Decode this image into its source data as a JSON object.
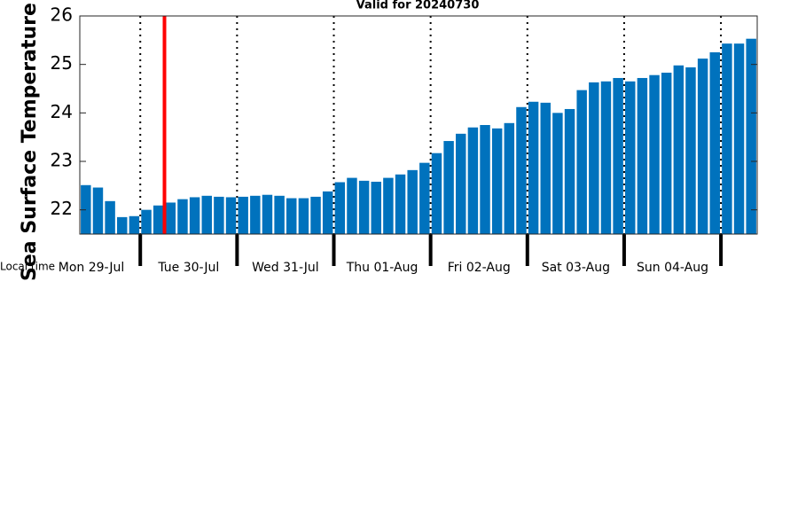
{
  "chart_data": {
    "type": "bar",
    "title": "Valid for 20240730",
    "y_label": "Sea Surface Temperature",
    "x_label": "Local time",
    "day_labels": [
      "Mon 29-Jul",
      "Tue 30-Jul",
      "Wed 31-Jul",
      "Thu 01-Aug",
      "Fri 02-Aug",
      "Sat 03-Aug",
      "Sun 04-Aug"
    ],
    "values": [
      22.51,
      22.46,
      22.18,
      21.85,
      21.87,
      22.0,
      22.09,
      22.15,
      22.22,
      22.26,
      22.29,
      22.27,
      22.26,
      22.27,
      22.29,
      22.31,
      22.29,
      22.24,
      22.24,
      22.27,
      22.38,
      22.57,
      22.66,
      22.6,
      22.58,
      22.66,
      22.73,
      22.82,
      22.97,
      23.17,
      23.42,
      23.57,
      23.7,
      23.75,
      23.68,
      23.79,
      24.12,
      24.23,
      24.21,
      24.0,
      24.08,
      24.47,
      24.63,
      24.65,
      24.72,
      24.65,
      24.72,
      24.78,
      24.83,
      24.98,
      24.94,
      25.12,
      25.25,
      25.43,
      25.43,
      25.53
    ],
    "color": "#0072bd",
    "ylim": [
      21.5,
      26
    ],
    "yticks": [
      22,
      23,
      24,
      25,
      26
    ]
  }
}
